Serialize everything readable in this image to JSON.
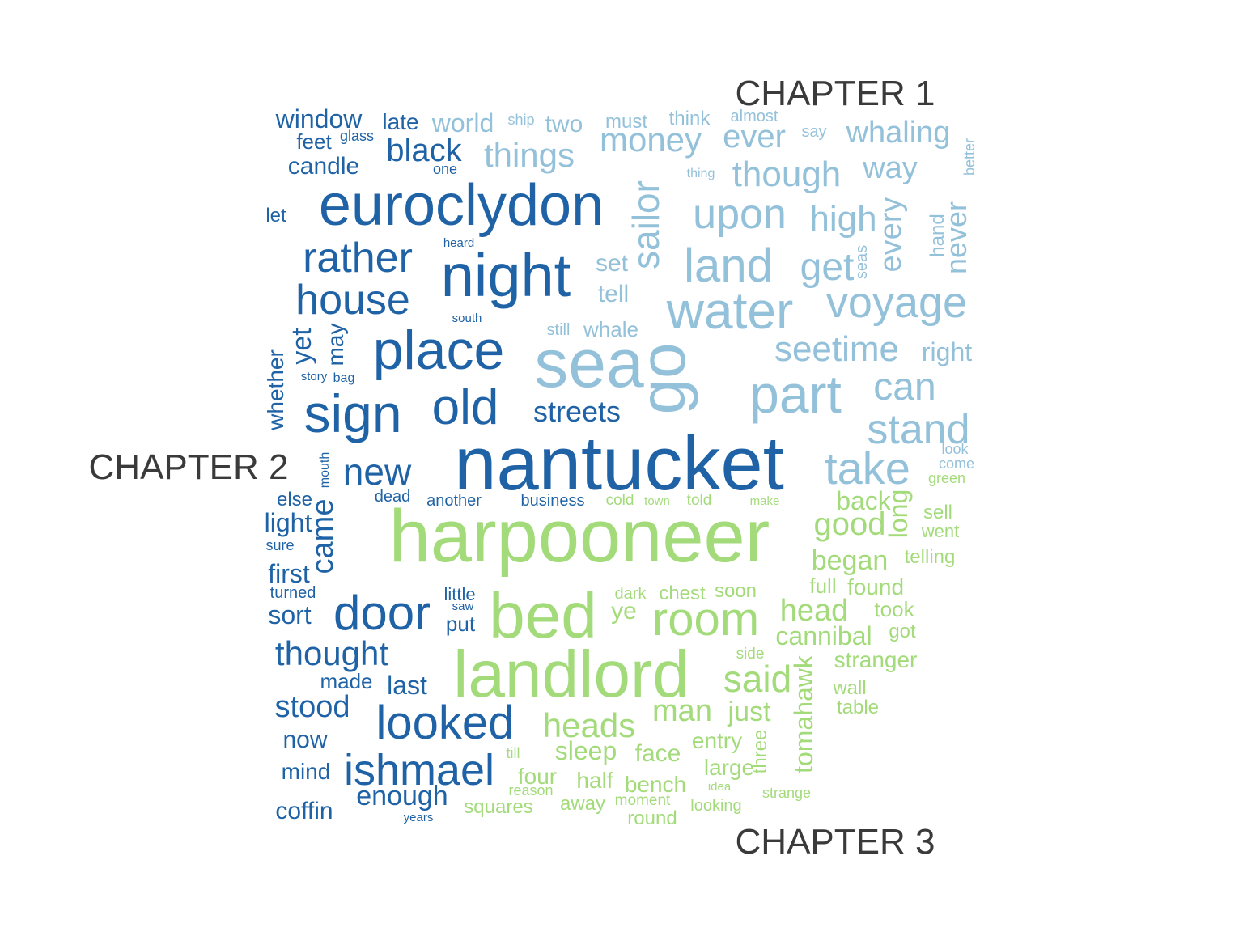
{
  "chart_data": {
    "type": "comparison_wordcloud",
    "labels": [
      {
        "text": "CHAPTER 1",
        "color": "#3a3a3a"
      },
      {
        "text": "CHAPTER 2",
        "color": "#3a3a3a"
      },
      {
        "text": "CHAPTER 3",
        "color": "#3a3a3a"
      }
    ],
    "colors": {
      "chapter_1": "#94C1DA",
      "chapter_2": "#1F63A6",
      "chapter_3": "#A3DB7B"
    },
    "groups": [
      {
        "label": "CHAPTER 1",
        "color": "#94C1DA",
        "words": [
          {
            "text": "sea",
            "weight": 82
          },
          {
            "text": "go",
            "weight": 80
          },
          {
            "text": "water",
            "weight": 66
          },
          {
            "text": "part",
            "weight": 64
          },
          {
            "text": "land",
            "weight": 58
          },
          {
            "text": "voyage",
            "weight": 54
          },
          {
            "text": "stand",
            "weight": 52
          },
          {
            "text": "take",
            "weight": 54
          },
          {
            "text": "upon",
            "weight": 52
          },
          {
            "text": "sailor",
            "weight": 48
          },
          {
            "text": "can",
            "weight": 48
          },
          {
            "text": "get",
            "weight": 48
          },
          {
            "text": "high",
            "weight": 46
          },
          {
            "text": "seetime",
            "weight": 44
          },
          {
            "text": "though",
            "weight": 44
          },
          {
            "text": "money",
            "weight": 42
          },
          {
            "text": "things",
            "weight": 42
          },
          {
            "text": "every",
            "weight": 40
          },
          {
            "text": "ever",
            "weight": 40
          },
          {
            "text": "never",
            "weight": 38
          },
          {
            "text": "whaling",
            "weight": 38
          },
          {
            "text": "way",
            "weight": 38
          },
          {
            "text": "right",
            "weight": 32
          },
          {
            "text": "world",
            "weight": 32
          },
          {
            "text": "two",
            "weight": 30
          },
          {
            "text": "set",
            "weight": 30
          },
          {
            "text": "tell",
            "weight": 30
          },
          {
            "text": "whale",
            "weight": 26
          },
          {
            "text": "must",
            "weight": 24
          },
          {
            "text": "think",
            "weight": 24
          },
          {
            "text": "hand",
            "weight": 24
          },
          {
            "text": "almost",
            "weight": 20
          },
          {
            "text": "still",
            "weight": 20
          },
          {
            "text": "say",
            "weight": 20
          },
          {
            "text": "seas",
            "weight": 20
          },
          {
            "text": "ship",
            "weight": 18
          },
          {
            "text": "better",
            "weight": 18
          },
          {
            "text": "look",
            "weight": 18
          },
          {
            "text": "come",
            "weight": 18
          },
          {
            "text": "thing",
            "weight": 16
          }
        ]
      },
      {
        "label": "CHAPTER 2",
        "color": "#1F63A6",
        "words": [
          {
            "text": "nantucket",
            "weight": 92
          },
          {
            "text": "night",
            "weight": 74
          },
          {
            "text": "euroclydon",
            "weight": 70
          },
          {
            "text": "place",
            "weight": 68
          },
          {
            "text": "sign",
            "weight": 66
          },
          {
            "text": "old",
            "weight": 62
          },
          {
            "text": "door",
            "weight": 60
          },
          {
            "text": "looked",
            "weight": 58
          },
          {
            "text": "ishmael",
            "weight": 54
          },
          {
            "text": "house",
            "weight": 52
          },
          {
            "text": "rather",
            "weight": 52
          },
          {
            "text": "new",
            "weight": 48
          },
          {
            "text": "thought",
            "weight": 42
          },
          {
            "text": "black",
            "weight": 40
          },
          {
            "text": "came",
            "weight": 38
          },
          {
            "text": "stood",
            "weight": 38
          },
          {
            "text": "streets",
            "weight": 36
          },
          {
            "text": "yet",
            "weight": 34
          },
          {
            "text": "enough",
            "weight": 34
          },
          {
            "text": "last",
            "weight": 32
          },
          {
            "text": "window",
            "weight": 32
          },
          {
            "text": "light",
            "weight": 32
          },
          {
            "text": "first",
            "weight": 32
          },
          {
            "text": "sort",
            "weight": 32
          },
          {
            "text": "now",
            "weight": 30
          },
          {
            "text": "candle",
            "weight": 30
          },
          {
            "text": "coffin",
            "weight": 30
          },
          {
            "text": "whether",
            "weight": 28
          },
          {
            "text": "late",
            "weight": 28
          },
          {
            "text": "may",
            "weight": 28
          },
          {
            "text": "mind",
            "weight": 28
          },
          {
            "text": "feet",
            "weight": 26
          },
          {
            "text": "made",
            "weight": 26
          },
          {
            "text": "put",
            "weight": 26
          },
          {
            "text": "let",
            "weight": 24
          },
          {
            "text": "else",
            "weight": 24
          },
          {
            "text": "little",
            "weight": 22
          },
          {
            "text": "another",
            "weight": 20
          },
          {
            "text": "business",
            "weight": 20
          },
          {
            "text": "dead",
            "weight": 20
          },
          {
            "text": "turned",
            "weight": 20
          },
          {
            "text": "sure",
            "weight": 18
          },
          {
            "text": "glass",
            "weight": 18
          },
          {
            "text": "one",
            "weight": 18
          },
          {
            "text": "mouth",
            "weight": 16
          },
          {
            "text": "bag",
            "weight": 16
          },
          {
            "text": "story",
            "weight": 15
          },
          {
            "text": "saw",
            "weight": 15
          },
          {
            "text": "heard",
            "weight": 15
          },
          {
            "text": "south",
            "weight": 15
          },
          {
            "text": "years",
            "weight": 15
          }
        ]
      },
      {
        "label": "CHAPTER 3",
        "color": "#A3DB7B",
        "words": [
          {
            "text": "harpooneer",
            "weight": 90
          },
          {
            "text": "landlord",
            "weight": 82
          },
          {
            "text": "bed",
            "weight": 80
          },
          {
            "text": "room",
            "weight": 60
          },
          {
            "text": "said",
            "weight": 46
          },
          {
            "text": "heads",
            "weight": 42
          },
          {
            "text": "good",
            "weight": 40
          },
          {
            "text": "head",
            "weight": 38
          },
          {
            "text": "man",
            "weight": 38
          },
          {
            "text": "tomahawk",
            "weight": 34
          },
          {
            "text": "began",
            "weight": 34
          },
          {
            "text": "just",
            "weight": 34
          },
          {
            "text": "sleep",
            "weight": 32
          },
          {
            "text": "long",
            "weight": 32
          },
          {
            "text": "cannibal",
            "weight": 32
          },
          {
            "text": "back",
            "weight": 32
          },
          {
            "text": "face",
            "weight": 30
          },
          {
            "text": "ye",
            "weight": 30
          },
          {
            "text": "half",
            "weight": 28
          },
          {
            "text": "four",
            "weight": 28
          },
          {
            "text": "bench",
            "weight": 28
          },
          {
            "text": "entry",
            "weight": 28
          },
          {
            "text": "large",
            "weight": 28
          },
          {
            "text": "stranger",
            "weight": 28
          },
          {
            "text": "found",
            "weight": 28
          },
          {
            "text": "full",
            "weight": 26
          },
          {
            "text": "took",
            "weight": 26
          },
          {
            "text": "squares",
            "weight": 24
          },
          {
            "text": "away",
            "weight": 24
          },
          {
            "text": "round",
            "weight": 24
          },
          {
            "text": "sell",
            "weight": 24
          },
          {
            "text": "three",
            "weight": 24
          },
          {
            "text": "got",
            "weight": 24
          },
          {
            "text": "telling",
            "weight": 24
          },
          {
            "text": "chest",
            "weight": 24
          },
          {
            "text": "soon",
            "weight": 24
          },
          {
            "text": "wall",
            "weight": 24
          },
          {
            "text": "table",
            "weight": 24
          },
          {
            "text": "went",
            "weight": 22
          },
          {
            "text": "dark",
            "weight": 20
          },
          {
            "text": "looking",
            "weight": 20
          },
          {
            "text": "moment",
            "weight": 19
          },
          {
            "text": "cold",
            "weight": 19
          },
          {
            "text": "told",
            "weight": 19
          },
          {
            "text": "side",
            "weight": 19
          },
          {
            "text": "strange",
            "weight": 18
          },
          {
            "text": "reason",
            "weight": 18
          },
          {
            "text": "till",
            "weight": 18
          },
          {
            "text": "green",
            "weight": 18
          },
          {
            "text": "town",
            "weight": 15
          },
          {
            "text": "make",
            "weight": 15
          },
          {
            "text": "idea",
            "weight": 15
          }
        ]
      }
    ]
  }
}
